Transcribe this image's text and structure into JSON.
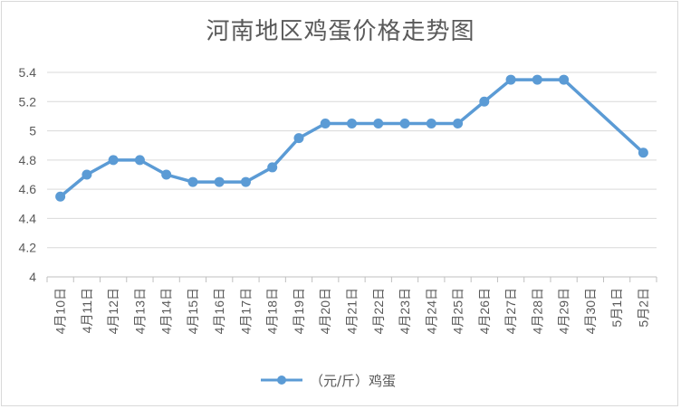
{
  "chart_data": {
    "type": "line",
    "title": "河南地区鸡蛋价格走势图",
    "xlabel": "",
    "ylabel": "",
    "ylim": [
      4,
      5.4
    ],
    "yticks": [
      "4",
      "4.2",
      "4.4",
      "4.6",
      "4.8",
      "5",
      "5.2",
      "5.4"
    ],
    "categories": [
      "4月10日",
      "4月11日",
      "4月12日",
      "4月13日",
      "4月14日",
      "4月15日",
      "4月16日",
      "4月17日",
      "4月18日",
      "4月19日",
      "4月20日",
      "4月21日",
      "4月22日",
      "4月23日",
      "4月24日",
      "4月25日",
      "4月26日",
      "4月27日",
      "4月28日",
      "4月29日",
      "4月30日",
      "5月1日",
      "5月2日"
    ],
    "series": [
      {
        "name": "（元/斤）鸡蛋",
        "values": [
          4.55,
          4.7,
          4.8,
          4.8,
          4.7,
          4.65,
          4.65,
          4.65,
          4.75,
          4.95,
          5.05,
          5.05,
          5.05,
          5.05,
          5.05,
          5.05,
          5.2,
          5.35,
          5.35,
          5.35,
          null,
          null,
          4.85
        ],
        "color": "#5b9bd5"
      }
    ],
    "grid": true,
    "legend": "bottom"
  }
}
